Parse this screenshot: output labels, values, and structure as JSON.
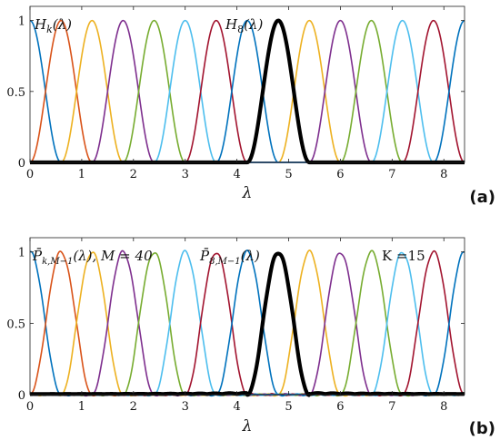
{
  "chart_data": [
    {
      "type": "line",
      "panel_label": "(a)",
      "xlabel": "λ",
      "xlim": [
        0,
        8.4
      ],
      "ylim": [
        0,
        1.1
      ],
      "xticks": [
        0,
        1,
        2,
        3,
        4,
        5,
        6,
        7,
        8
      ],
      "yticks": [
        0,
        0.5,
        1
      ],
      "ytick_labels": [
        "0",
        "0.5",
        "1"
      ],
      "annotations": [
        {
          "text": "H",
          "sub": "k",
          "arg": "(λ)"
        },
        {
          "text": "H",
          "sub": "8",
          "arg": "(λ)"
        }
      ],
      "kernel": {
        "shape": "sin-squared",
        "half_width": 0.6
      },
      "series": [
        {
          "center": 0.0,
          "color": "#0072bd",
          "highlight": false
        },
        {
          "center": 0.6,
          "color": "#d95319",
          "highlight": false
        },
        {
          "center": 1.2,
          "color": "#edb120",
          "highlight": false
        },
        {
          "center": 1.8,
          "color": "#7e2f8e",
          "highlight": false
        },
        {
          "center": 2.4,
          "color": "#77ac30",
          "highlight": false
        },
        {
          "center": 3.0,
          "color": "#4dbeee",
          "highlight": false
        },
        {
          "center": 3.6,
          "color": "#a2142f",
          "highlight": false
        },
        {
          "center": 4.2,
          "color": "#0072bd",
          "highlight": false
        },
        {
          "center": 4.8,
          "color": "#000000",
          "highlight": true
        },
        {
          "center": 5.4,
          "color": "#edb120",
          "highlight": false
        },
        {
          "center": 6.0,
          "color": "#7e2f8e",
          "highlight": false
        },
        {
          "center": 6.6,
          "color": "#77ac30",
          "highlight": false
        },
        {
          "center": 7.2,
          "color": "#4dbeee",
          "highlight": false
        },
        {
          "center": 7.8,
          "color": "#a2142f",
          "highlight": false
        },
        {
          "center": 8.4,
          "color": "#0072bd",
          "highlight": false
        }
      ]
    },
    {
      "type": "line",
      "panel_label": "(b)",
      "xlabel": "λ",
      "xlim": [
        0,
        8.4
      ],
      "ylim": [
        0,
        1.1
      ],
      "xticks": [
        0,
        1,
        2,
        3,
        4,
        5,
        6,
        7,
        8
      ],
      "yticks": [
        0,
        0.5,
        1
      ],
      "ytick_labels": [
        "0",
        "0.5",
        "1"
      ],
      "annotations": [
        {
          "text": "P̄",
          "sub": "k,M−1",
          "arg": "(λ),  M = 40"
        },
        {
          "text": "P̄",
          "sub": "8,M−1",
          "arg": "(λ)"
        },
        {
          "text": "K =15"
        }
      ],
      "kernel": {
        "shape": "sin-squared with ripple",
        "half_width": 0.6,
        "ripple": 0.012
      },
      "series": [
        {
          "center": 0.0,
          "color": "#0072bd",
          "highlight": false
        },
        {
          "center": 0.6,
          "color": "#d95319",
          "highlight": false
        },
        {
          "center": 1.2,
          "color": "#edb120",
          "highlight": false
        },
        {
          "center": 1.8,
          "color": "#7e2f8e",
          "highlight": false
        },
        {
          "center": 2.4,
          "color": "#77ac30",
          "highlight": false
        },
        {
          "center": 3.0,
          "color": "#4dbeee",
          "highlight": false
        },
        {
          "center": 3.6,
          "color": "#a2142f",
          "highlight": false
        },
        {
          "center": 4.2,
          "color": "#0072bd",
          "highlight": false
        },
        {
          "center": 4.8,
          "color": "#000000",
          "highlight": true
        },
        {
          "center": 5.4,
          "color": "#edb120",
          "highlight": false
        },
        {
          "center": 6.0,
          "color": "#7e2f8e",
          "highlight": false
        },
        {
          "center": 6.6,
          "color": "#77ac30",
          "highlight": false
        },
        {
          "center": 7.2,
          "color": "#4dbeee",
          "highlight": false
        },
        {
          "center": 7.8,
          "color": "#a2142f",
          "highlight": false
        },
        {
          "center": 8.4,
          "color": "#0072bd",
          "highlight": false
        }
      ]
    }
  ]
}
